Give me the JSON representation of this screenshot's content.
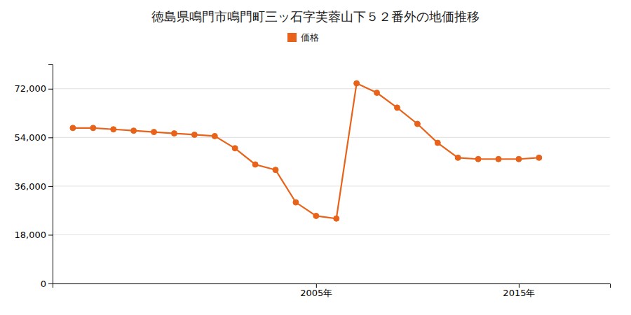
{
  "chart_data": {
    "type": "line",
    "title": "徳島県鳴門市鳴門町三ッ石字芙蓉山下５２番外の地価推移",
    "x": [
      1993,
      1994,
      1995,
      1996,
      1997,
      1998,
      1999,
      2000,
      2001,
      2002,
      2003,
      2004,
      2005,
      2006,
      2007,
      2008,
      2009,
      2010,
      2011,
      2012,
      2013,
      2014,
      2015,
      2016
    ],
    "series": [
      {
        "name": "価格",
        "color": "#E8621A",
        "marker": "circle",
        "values": [
          57500,
          57500,
          57000,
          56500,
          56000,
          55500,
          55000,
          54500,
          50000,
          44000,
          42000,
          30000,
          25000,
          24000,
          74000,
          70500,
          65000,
          59000,
          52000,
          46500,
          46000,
          46000,
          46000,
          46500
        ]
      }
    ],
    "xlim": [
      1992,
      2019.5
    ],
    "xticks": [
      {
        "value": 2005,
        "label": "2005年"
      },
      {
        "value": 2015,
        "label": "2015年"
      }
    ],
    "ylim": [
      0,
      81000
    ],
    "yticks": [
      0,
      {
        "value": 18000,
        "label": "18,000"
      },
      {
        "value": 36000,
        "label": "36,000"
      },
      {
        "value": 54000,
        "label": "54,000"
      },
      {
        "value": 72000,
        "label": "72,000"
      }
    ],
    "grid": true,
    "legend": "top"
  }
}
